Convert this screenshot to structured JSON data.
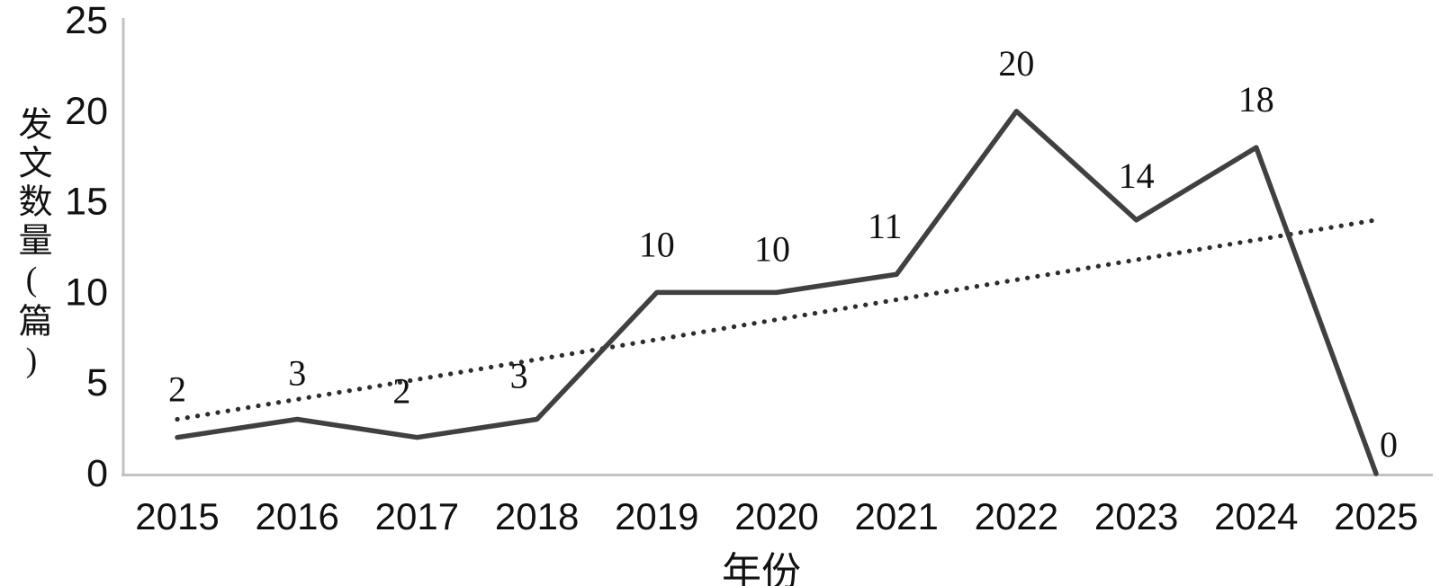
{
  "chart_data": {
    "type": "line",
    "title": "",
    "xlabel": "年份",
    "ylabel": "发文数量(篇)",
    "categories": [
      "2015",
      "2016",
      "2017",
      "2018",
      "2019",
      "2020",
      "2021",
      "2022",
      "2023",
      "2024",
      "2025"
    ],
    "series": [
      {
        "name": "发文数量",
        "values": [
          2,
          3,
          2,
          3,
          10,
          10,
          11,
          20,
          14,
          18,
          0
        ],
        "line_style": "solid",
        "color": "#404040"
      }
    ],
    "trendline": {
      "line_style": "dotted",
      "color": "#2d2d2d",
      "start_value": 3,
      "end_value": 14
    },
    "data_labels": [
      "2",
      "3",
      "2",
      "3",
      "10",
      "10",
      "11",
      "20",
      "14",
      "18",
      "0"
    ],
    "y_ticks": [
      "0",
      "5",
      "10",
      "15",
      "20",
      "25"
    ],
    "ylim": [
      0,
      25
    ],
    "grid": false,
    "legend": "none",
    "axis_color": "#c2c2c2",
    "text_color": "#111111",
    "label_offsets": {
      "dx": [
        0,
        0,
        -17,
        -20,
        0,
        -5,
        -13,
        0,
        0,
        0,
        14
      ],
      "dy": [
        0,
        2,
        2,
        5,
        0,
        5,
        0,
        0,
        4,
        0,
        21
      ]
    }
  }
}
